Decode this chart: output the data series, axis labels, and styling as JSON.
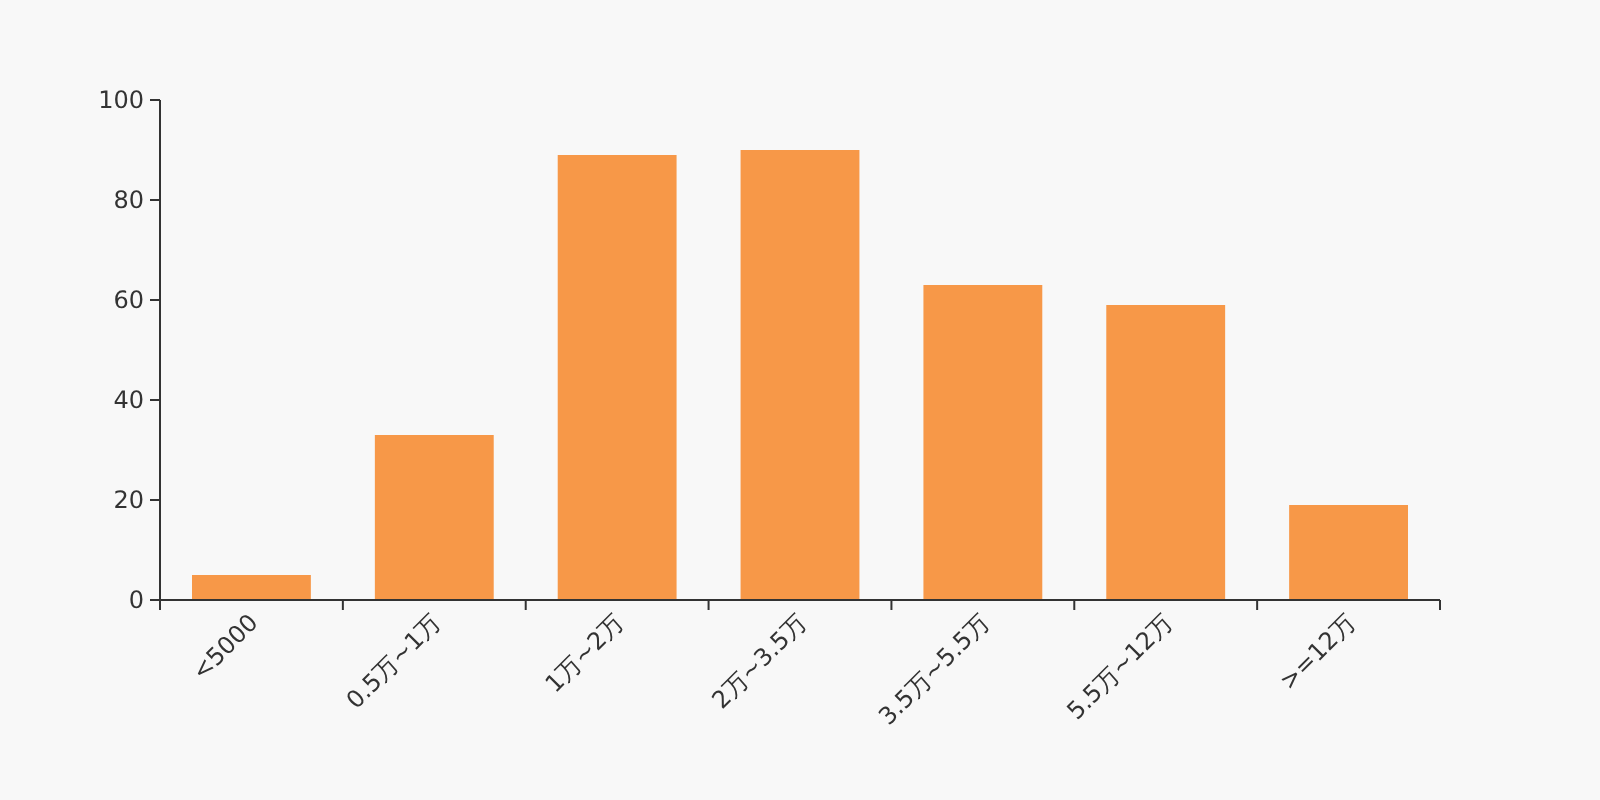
{
  "chart_data": {
    "type": "bar",
    "categories": [
      "<5000",
      "0.5万~1万",
      "1万~2万",
      "2万~3.5万",
      "3.5万~5.5万",
      "5.5万~12万",
      ">=12万"
    ],
    "values": [
      5,
      33,
      89,
      90,
      63,
      59,
      19
    ],
    "color": "#f79848",
    "ylim": [
      0,
      100
    ],
    "yticks": [
      0,
      20,
      40,
      60,
      80,
      100
    ],
    "grid": false
  }
}
